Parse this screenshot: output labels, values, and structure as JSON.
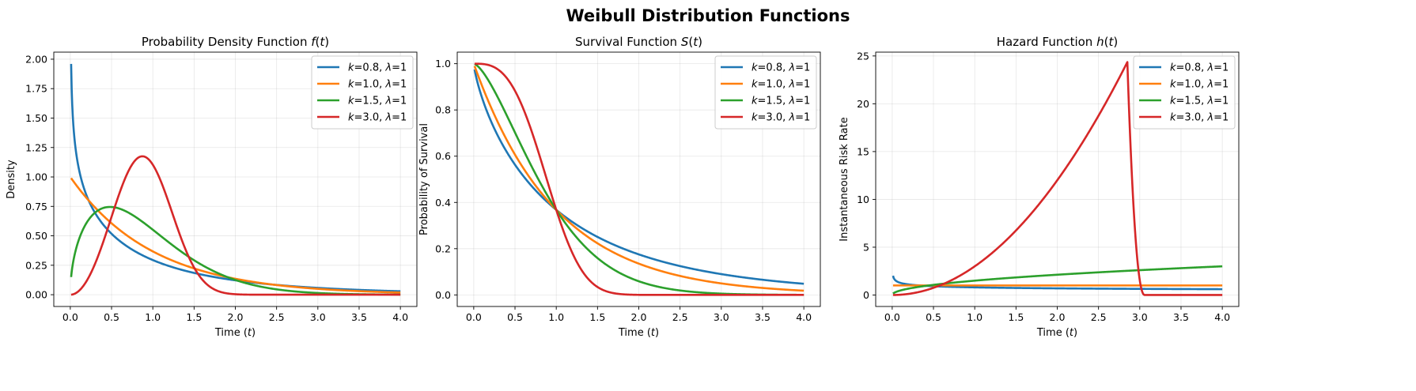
{
  "figure_title": "Weibull Distribution Functions",
  "colors": {
    "k0.8": "#1f77b4",
    "k1.0": "#ff7f0e",
    "k1.5": "#2ca02c",
    "k3.0": "#d62728"
  },
  "chart_data": [
    {
      "type": "line",
      "title": "Probability Density Function f(t)",
      "xlabel": "Time (t)",
      "ylabel": "Density",
      "xlim": [
        -0.2,
        4.2
      ],
      "ylim": [
        -0.1,
        2.06
      ],
      "xticks": [
        "0.0",
        "0.5",
        "1.0",
        "1.5",
        "2.0",
        "2.5",
        "3.0",
        "3.5",
        "4.0"
      ],
      "yticks": [
        "0.00",
        "0.25",
        "0.50",
        "0.75",
        "1.00",
        "1.25",
        "1.50",
        "1.75",
        "2.00"
      ],
      "legend": "top-right",
      "grid": true,
      "function": "pdf",
      "t_range": [
        0.01,
        4.0
      ],
      "series": [
        {
          "name": "k=0.8, λ=1",
          "label_k": "k",
          "label_k_val": "=0.8, ",
          "label_l": "λ",
          "label_l_val": "=1",
          "k": 0.8,
          "lambda": 1,
          "color": "#1f77b4",
          "samples": {
            "t": [
              0.01,
              0.5,
              1.0,
              2.0,
              4.0
            ],
            "f": [
              1.97,
              0.53,
              0.29,
              0.13,
              0.03
            ]
          }
        },
        {
          "name": "k=1.0, λ=1",
          "label_k": "k",
          "label_k_val": "=1.0, ",
          "label_l": "λ",
          "label_l_val": "=1",
          "k": 1.0,
          "lambda": 1,
          "color": "#ff7f0e",
          "samples": {
            "t": [
              0.01,
              0.5,
              1.0,
              2.0,
              4.0
            ],
            "f": [
              0.99,
              0.61,
              0.37,
              0.14,
              0.02
            ]
          }
        },
        {
          "name": "k=1.5, λ=1",
          "label_k": "k",
          "label_k_val": "=1.5, ",
          "label_l": "λ",
          "label_l_val": "=1",
          "k": 1.5,
          "lambda": 1,
          "color": "#2ca02c",
          "samples": {
            "t": [
              0.01,
              0.5,
              1.0,
              2.0,
              4.0
            ],
            "f": [
              0.15,
              0.74,
              0.55,
              0.12,
              0.0
            ]
          }
        },
        {
          "name": "k=3.0, λ=1",
          "label_k": "k",
          "label_k_val": "=3.0, ",
          "label_l": "λ",
          "label_l_val": "=1",
          "k": 3.0,
          "lambda": 1,
          "color": "#d62728",
          "samples": {
            "t": [
              0.01,
              0.5,
              0.87,
              1.5,
              4.0
            ],
            "f": [
              0.0,
              0.66,
              1.18,
              0.23,
              0.0
            ]
          }
        }
      ]
    },
    {
      "type": "line",
      "title": "Survival Function S(t)",
      "xlabel": "Time (t)",
      "ylabel": "Probability of Survival",
      "xlim": [
        -0.2,
        4.2
      ],
      "ylim": [
        -0.05,
        1.05
      ],
      "xticks": [
        "0.0",
        "0.5",
        "1.0",
        "1.5",
        "2.0",
        "2.5",
        "3.0",
        "3.5",
        "4.0"
      ],
      "yticks": [
        "0.0",
        "0.2",
        "0.4",
        "0.6",
        "0.8",
        "1.0"
      ],
      "legend": "top-right",
      "grid": true,
      "function": "survival",
      "t_range": [
        0.01,
        4.0
      ],
      "series": [
        {
          "name": "k=0.8, λ=1",
          "label_k": "k",
          "label_k_val": "=0.8, ",
          "label_l": "λ",
          "label_l_val": "=1",
          "k": 0.8,
          "lambda": 1,
          "color": "#1f77b4"
        },
        {
          "name": "k=1.0, λ=1",
          "label_k": "k",
          "label_k_val": "=1.0, ",
          "label_l": "λ",
          "label_l_val": "=1",
          "k": 1.0,
          "lambda": 1,
          "color": "#ff7f0e"
        },
        {
          "name": "k=1.5, λ=1",
          "label_k": "k",
          "label_k_val": "=1.5, ",
          "label_l": "λ",
          "label_l_val": "=1",
          "k": 1.5,
          "lambda": 1,
          "color": "#2ca02c"
        },
        {
          "name": "k=3.0, λ=1",
          "label_k": "k",
          "label_k_val": "=3.0, ",
          "label_l": "λ",
          "label_l_val": "=1",
          "k": 3.0,
          "lambda": 1,
          "color": "#d62728"
        }
      ]
    },
    {
      "type": "line",
      "title": "Hazard Function h(t)",
      "xlabel": "Time (t)",
      "ylabel": "Instantaneous Risk Rate",
      "xlim": [
        -0.2,
        4.2
      ],
      "ylim": [
        -1.2,
        25.4
      ],
      "xticks": [
        "0.0",
        "0.5",
        "1.0",
        "1.5",
        "2.0",
        "2.5",
        "3.0",
        "3.5",
        "4.0"
      ],
      "yticks": [
        "0",
        "5",
        "10",
        "15",
        "20",
        "25"
      ],
      "legend": "top-right",
      "grid": true,
      "function": "hazard",
      "t_range": [
        0.01,
        4.0
      ],
      "hazard_note": "k=3.0 curve rises as 3t^2 to about 24.2 at t≈2.85, then drops sharply to 0 by t≈3.05",
      "k3_peak": {
        "t": 2.85,
        "h": 24.2
      },
      "k3_drop_end": 3.06,
      "series": [
        {
          "name": "k=0.8, λ=1",
          "label_k": "k",
          "label_k_val": "=0.8, ",
          "label_l": "λ",
          "label_l_val": "=1",
          "k": 0.8,
          "lambda": 1,
          "color": "#1f77b4"
        },
        {
          "name": "k=1.0, λ=1",
          "label_k": "k",
          "label_k_val": "=1.0, ",
          "label_l": "λ",
          "label_l_val": "=1",
          "k": 1.0,
          "lambda": 1,
          "color": "#ff7f0e"
        },
        {
          "name": "k=1.5, λ=1",
          "label_k": "k",
          "label_k_val": "=1.5, ",
          "label_l": "λ",
          "label_l_val": "=1",
          "k": 1.5,
          "lambda": 1,
          "color": "#2ca02c"
        },
        {
          "name": "k=3.0, λ=1",
          "label_k": "k",
          "label_k_val": "=3.0, ",
          "label_l": "λ",
          "label_l_val": "=1",
          "k": 3.0,
          "lambda": 1,
          "color": "#d62728"
        }
      ]
    }
  ]
}
